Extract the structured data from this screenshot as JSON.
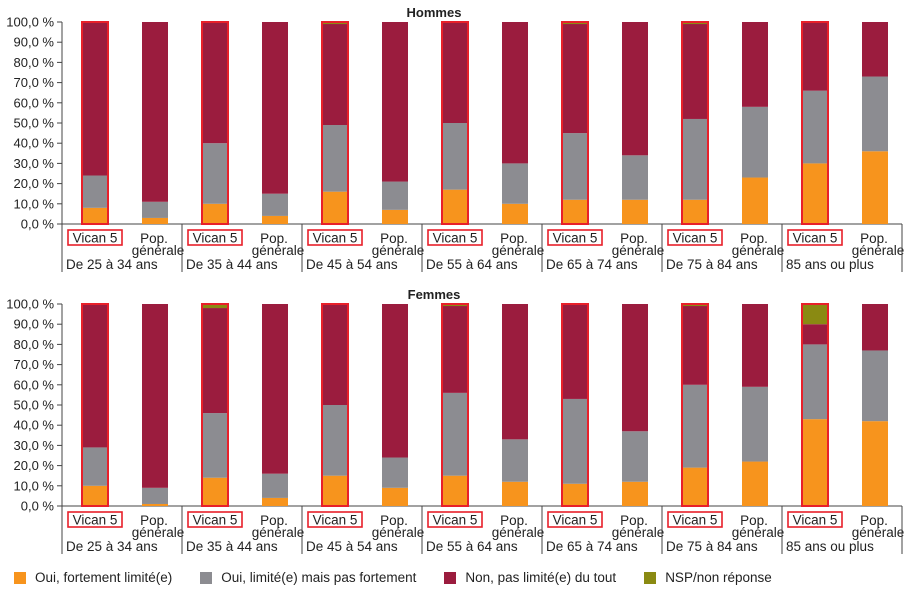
{
  "legend": {
    "items": [
      {
        "label": "Oui, fortement limité(e)",
        "color": "#f7941d"
      },
      {
        "label": "Oui, limité(e) mais pas fortement",
        "color": "#8c8c91"
      },
      {
        "label": "Non, pas limité(e) du tout",
        "color": "#9b1c3e"
      },
      {
        "label": "NSP/non réponse",
        "color": "#8a8a12"
      }
    ]
  },
  "highlight_color": "#e8202a",
  "chart_data": [
    {
      "type": "bar",
      "stacked": true,
      "title": "Hommes",
      "ylim": [
        0,
        100
      ],
      "y_ticks": [
        "0,0 %",
        "10,0 %",
        "20,0 %",
        "30,0 %",
        "40,0 %",
        "50,0 %",
        "60,0 %",
        "70,0 %",
        "80,0 %",
        "90,0 %",
        "100,0 %"
      ],
      "groups": [
        "De 25 à 34 ans",
        "De 35 à 44 ans",
        "De 45 à 54 ans",
        "De 55 à 64 ans",
        "De 65 à 74 ans",
        "De 75 à 84 ans",
        "85 ans ou plus"
      ],
      "bar_labels": [
        "Vican 5",
        "Pop. générale"
      ],
      "highlighted_bar": "Vican 5",
      "series": [
        {
          "name": "Oui, fortement limité(e)",
          "values": [
            8,
            3,
            10,
            4,
            16,
            7,
            17,
            10,
            12,
            12,
            12,
            23,
            30,
            36
          ]
        },
        {
          "name": "Oui, limité(e) mais pas fortement",
          "values": [
            16,
            8,
            30,
            11,
            33,
            14,
            33,
            20,
            33,
            22,
            40,
            35,
            36,
            37
          ]
        },
        {
          "name": "Non, pas limité(e) du tout",
          "values": [
            76,
            89,
            60,
            85,
            50,
            79,
            50,
            70,
            54,
            66,
            47,
            42,
            34,
            27
          ]
        },
        {
          "name": "NSP/non réponse",
          "values": [
            0,
            0,
            0,
            0,
            1,
            0,
            0,
            0,
            1,
            0,
            1,
            0,
            0,
            0
          ]
        }
      ]
    },
    {
      "type": "bar",
      "stacked": true,
      "title": "Femmes",
      "ylim": [
        0,
        100
      ],
      "y_ticks": [
        "0,0 %",
        "10,0 %",
        "20,0 %",
        "30,0 %",
        "40,0 %",
        "50,0 %",
        "60,0 %",
        "70,0 %",
        "80,0 %",
        "90,0 %",
        "100,0 %"
      ],
      "groups": [
        "De 25 à 34 ans",
        "De 35 à 44 ans",
        "De 45 à 54 ans",
        "De 55 à 64 ans",
        "De 65 à 74 ans",
        "De 75 à 84 ans",
        "85 ans ou plus"
      ],
      "bar_labels": [
        "Vican 5",
        "Pop. générale"
      ],
      "highlighted_bar": "Vican 5",
      "series": [
        {
          "name": "Oui, fortement limité(e)",
          "values": [
            10,
            1,
            14,
            4,
            15,
            9,
            15,
            12,
            11,
            12,
            19,
            22,
            43,
            42
          ]
        },
        {
          "name": "Oui, limité(e) mais pas fortement",
          "values": [
            19,
            8,
            32,
            12,
            35,
            15,
            41,
            21,
            42,
            25,
            41,
            37,
            37,
            35
          ]
        },
        {
          "name": "Non, pas limité(e) du tout",
          "values": [
            71,
            91,
            52,
            84,
            50,
            76,
            43,
            67,
            47,
            63,
            39,
            41,
            10,
            23
          ]
        },
        {
          "name": "NSP/non réponse",
          "values": [
            0,
            0,
            2,
            0,
            0,
            0,
            1,
            0,
            0,
            0,
            1,
            0,
            10,
            0
          ]
        }
      ]
    }
  ]
}
